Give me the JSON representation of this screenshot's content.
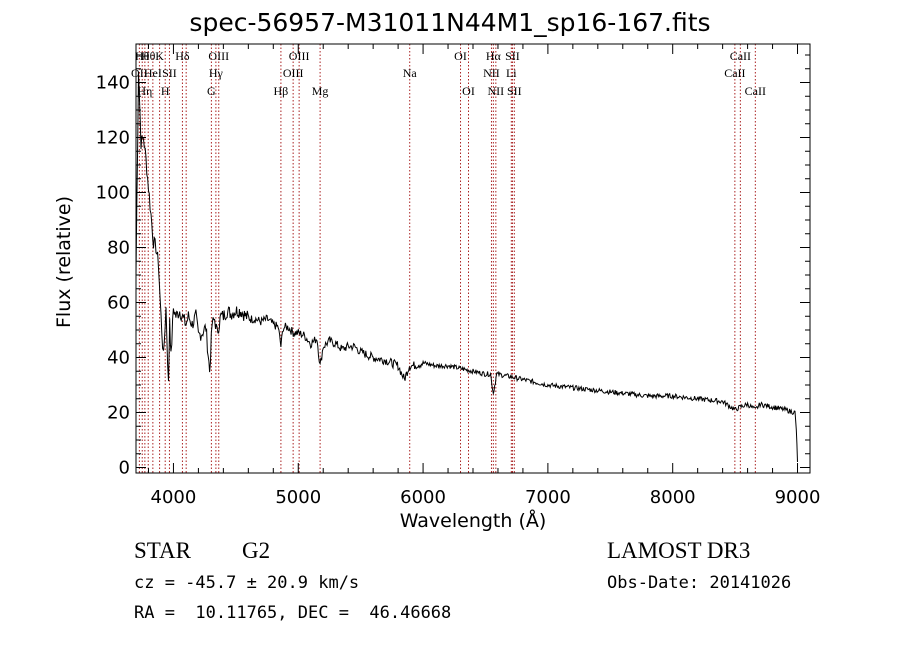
{
  "chart_data": {
    "type": "line",
    "title": "spec-56957-M31011N44M1_sp16-167.fits",
    "xlabel": "Wavelength (Å)",
    "ylabel": "Flux (relative)",
    "xlim": [
      3700,
      9100
    ],
    "ylim": [
      -2,
      154
    ],
    "xticks": [
      4000,
      5000,
      6000,
      7000,
      8000,
      9000
    ],
    "yticks": [
      0,
      20,
      40,
      60,
      80,
      100,
      120,
      140
    ],
    "grid": false,
    "series": [
      {
        "name": "spectrum",
        "x": [
          3700,
          3720,
          3740,
          3760,
          3780,
          3800,
          3820,
          3840,
          3860,
          3880,
          3900,
          3920,
          3940,
          3960,
          3970,
          3980,
          4000,
          4020,
          4050,
          4080,
          4100,
          4120,
          4150,
          4180,
          4200,
          4230,
          4260,
          4290,
          4310,
          4330,
          4350,
          4380,
          4400,
          4430,
          4460,
          4500,
          4540,
          4580,
          4620,
          4660,
          4700,
          4750,
          4800,
          4840,
          4861,
          4880,
          4920,
          4960,
          5000,
          5050,
          5100,
          5150,
          5175,
          5200,
          5250,
          5300,
          5350,
          5400,
          5450,
          5500,
          5600,
          5700,
          5800,
          5850,
          5890,
          5920,
          6000,
          6100,
          6200,
          6300,
          6400,
          6500,
          6540,
          6563,
          6590,
          6700,
          6800,
          6900,
          7000,
          7200,
          7400,
          7600,
          7800,
          8000,
          8200,
          8400,
          8498,
          8542,
          8600,
          8662,
          8700,
          8800,
          8900,
          8980,
          8990,
          9000
        ],
        "values": [
          70,
          145,
          118,
          120,
          112,
          102,
          92,
          82,
          80,
          74,
          55,
          40,
          58,
          30,
          55,
          40,
          58,
          55,
          57,
          54,
          52,
          55,
          52,
          55,
          48,
          49,
          51,
          35,
          52,
          54,
          49,
          55,
          55,
          57,
          56,
          57,
          57,
          55,
          54,
          54,
          53,
          54,
          52,
          51,
          44,
          51,
          51,
          49,
          49,
          48,
          45,
          47,
          37,
          44,
          46,
          45,
          43,
          44,
          44,
          42,
          40,
          39,
          37,
          32,
          37,
          37,
          38,
          37,
          37,
          36,
          35,
          34,
          34,
          27,
          34,
          33,
          32,
          31,
          30,
          29,
          28,
          27,
          26,
          26,
          25,
          24,
          21,
          22,
          23,
          21,
          23,
          22,
          21,
          20,
          14,
          2
        ]
      }
    ],
    "line_labels": [
      {
        "x": 3727,
        "label": "OII",
        "row": 1
      },
      {
        "x": 3750,
        "label": "Hθ",
        "row": 0
      },
      {
        "x": 3771,
        "label": "Hη",
        "row": 2
      },
      {
        "x": 3798,
        "label": "Hθ",
        "row": 0
      },
      {
        "x": 3835,
        "label": "HeI",
        "row": 1
      },
      {
        "x": 3889,
        "label": "K",
        "row": 0
      },
      {
        "x": 3934,
        "label": "H",
        "row": 2
      },
      {
        "x": 3968,
        "label": "SII",
        "row": 1
      },
      {
        "x": 4072,
        "label": "Hδ",
        "row": 0
      },
      {
        "x": 4102,
        "label": "",
        "row": 0
      },
      {
        "x": 4304,
        "label": "G",
        "row": 2
      },
      {
        "x": 4340,
        "label": "Hγ",
        "row": 1
      },
      {
        "x": 4363,
        "label": "OIII",
        "row": 0
      },
      {
        "x": 4861,
        "label": "Hβ",
        "row": 2
      },
      {
        "x": 4959,
        "label": "OIII",
        "row": 1
      },
      {
        "x": 5007,
        "label": "OIII",
        "row": 0
      },
      {
        "x": 5175,
        "label": "Mg",
        "row": 2
      },
      {
        "x": 5893,
        "label": "Na",
        "row": 1
      },
      {
        "x": 6300,
        "label": "OI",
        "row": 0
      },
      {
        "x": 6364,
        "label": "OI",
        "row": 2
      },
      {
        "x": 6548,
        "label": "NII",
        "row": 1
      },
      {
        "x": 6563,
        "label": "Hα",
        "row": 0
      },
      {
        "x": 6583,
        "label": "NII",
        "row": 2
      },
      {
        "x": 6707,
        "label": "Li",
        "row": 1
      },
      {
        "x": 6716,
        "label": "SII",
        "row": 0
      },
      {
        "x": 6731,
        "label": "SII",
        "row": 2
      },
      {
        "x": 8498,
        "label": "CaII",
        "row": 1
      },
      {
        "x": 8542,
        "label": "CaII",
        "row": 0
      },
      {
        "x": 8662,
        "label": "CaII",
        "row": 2
      }
    ],
    "colors": {
      "line": "#000000",
      "markers": "#aa2222"
    }
  },
  "info": {
    "class": "STAR",
    "subclass": "G2",
    "survey": "LAMOST DR3",
    "cz": "cz = -45.7 ± 20.9 km/s",
    "obs_date": "Obs-Date: 20141026",
    "radec": "RA =  10.11765, DEC =  46.46668"
  }
}
